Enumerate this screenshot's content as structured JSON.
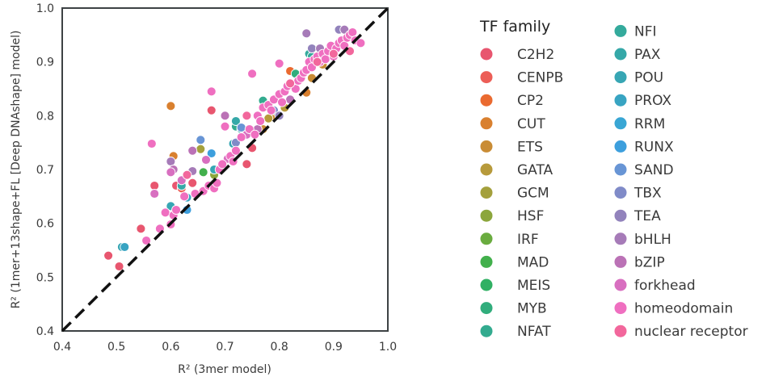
{
  "chart_data": {
    "type": "scatter",
    "xlabel": "R² (3mer model)",
    "ylabel": "R² (1mer+13shape+FL [Deep DNAshape] model)",
    "xlim": [
      0.4,
      1.0
    ],
    "ylim": [
      0.4,
      1.0
    ],
    "x_ticks": [
      "0.4",
      "0.5",
      "0.6",
      "0.7",
      "0.8",
      "0.9",
      "1.0"
    ],
    "y_ticks": [
      "0.4",
      "0.5",
      "0.6",
      "0.7",
      "0.8",
      "0.9",
      "1.0"
    ],
    "grid": false,
    "diagonal_reference": true,
    "legend": {
      "title": "TF family",
      "placement": "right, outside, two columns",
      "entries": [
        {
          "name": "C2H2",
          "color": "#e8566f"
        },
        {
          "name": "CENPB",
          "color": "#ec5e57"
        },
        {
          "name": "CP2",
          "color": "#ea6a30"
        },
        {
          "name": "CUT",
          "color": "#d9802f"
        },
        {
          "name": "ETS",
          "color": "#c98c35"
        },
        {
          "name": "GATA",
          "color": "#b79a3b"
        },
        {
          "name": "GCM",
          "color": "#a4a03c"
        },
        {
          "name": "HSF",
          "color": "#8ca63c"
        },
        {
          "name": "IRF",
          "color": "#6aac3f"
        },
        {
          "name": "MAD",
          "color": "#42b04c"
        },
        {
          "name": "MEIS",
          "color": "#30b063"
        },
        {
          "name": "MYB",
          "color": "#31ad7c"
        },
        {
          "name": "NFAT",
          "color": "#33ab8f"
        },
        {
          "name": "NFI",
          "color": "#34aa9c"
        },
        {
          "name": "PAX",
          "color": "#35a8a8"
        },
        {
          "name": "POU",
          "color": "#37a6b4"
        },
        {
          "name": "PROX",
          "color": "#38a4c2"
        },
        {
          "name": "RRM",
          "color": "#39a6d4"
        },
        {
          "name": "RUNX",
          "color": "#3d9fdd"
        },
        {
          "name": "SAND",
          "color": "#6895d5"
        },
        {
          "name": "TBX",
          "color": "#808bc8"
        },
        {
          "name": "TEA",
          "color": "#9283bc"
        },
        {
          "name": "bHLH",
          "color": "#a67bb8"
        },
        {
          "name": "bZIP",
          "color": "#bb72b6"
        },
        {
          "name": "forkhead",
          "color": "#d86fc0"
        },
        {
          "name": "homeodomain",
          "color": "#ef6fc0"
        },
        {
          "name": "nuclear receptor",
          "color": "#f2679c"
        }
      ]
    },
    "series": [
      {
        "name": "C2H2",
        "points": [
          [
            0.485,
            0.54
          ],
          [
            0.505,
            0.52
          ],
          [
            0.545,
            0.59
          ],
          [
            0.61,
            0.67
          ],
          [
            0.64,
            0.675
          ],
          [
            0.675,
            0.81
          ],
          [
            0.74,
            0.71
          ],
          [
            0.75,
            0.74
          ],
          [
            0.57,
            0.67
          ]
        ]
      },
      {
        "name": "CENPB",
        "points": [
          [
            0.62,
            0.665
          ]
        ]
      },
      {
        "name": "CP2",
        "points": [
          [
            0.82,
            0.883
          ]
        ]
      },
      {
        "name": "CUT",
        "points": [
          [
            0.6,
            0.818
          ],
          [
            0.605,
            0.725
          ],
          [
            0.85,
            0.843
          ]
        ]
      },
      {
        "name": "ETS",
        "points": [
          [
            0.77,
            0.775
          ],
          [
            0.79,
            0.8
          ],
          [
            0.86,
            0.87
          ],
          [
            0.88,
            0.895
          ]
        ]
      },
      {
        "name": "GATA",
        "points": [
          [
            0.78,
            0.795
          ],
          [
            0.81,
            0.815
          ]
        ]
      },
      {
        "name": "GCM",
        "points": [
          [
            0.655,
            0.738
          ]
        ]
      },
      {
        "name": "HSF",
        "points": [
          [
            0.68,
            0.69
          ]
        ]
      },
      {
        "name": "MAD",
        "points": [
          [
            0.66,
            0.695
          ]
        ]
      },
      {
        "name": "MYB",
        "points": [
          [
            0.83,
            0.878
          ]
        ]
      },
      {
        "name": "NFAT",
        "points": [
          [
            0.77,
            0.828
          ],
          [
            0.72,
            0.78
          ]
        ]
      },
      {
        "name": "NFI",
        "points": [
          [
            0.855,
            0.915
          ],
          [
            0.86,
            0.91
          ]
        ]
      },
      {
        "name": "PAX",
        "points": [
          [
            0.72,
            0.79
          ],
          [
            0.73,
            0.775
          ],
          [
            0.62,
            0.67
          ]
        ]
      },
      {
        "name": "POU",
        "points": [
          [
            0.6,
            0.632
          ],
          [
            0.51,
            0.556
          ],
          [
            0.68,
            0.7
          ],
          [
            0.715,
            0.748
          ]
        ]
      },
      {
        "name": "PROX",
        "points": [
          [
            0.515,
            0.556
          ],
          [
            0.63,
            0.648
          ]
        ]
      },
      {
        "name": "RUNX",
        "points": [
          [
            0.63,
            0.625
          ],
          [
            0.675,
            0.73
          ]
        ]
      },
      {
        "name": "SAND",
        "points": [
          [
            0.655,
            0.755
          ],
          [
            0.73,
            0.778
          ]
        ]
      },
      {
        "name": "TBX",
        "points": [
          [
            0.72,
            0.75
          ],
          [
            0.79,
            0.81
          ]
        ]
      },
      {
        "name": "TEA",
        "points": [
          [
            0.8,
            0.8
          ],
          [
            0.86,
            0.925
          ],
          [
            0.91,
            0.96
          ]
        ]
      },
      {
        "name": "bHLH",
        "points": [
          [
            0.6,
            0.715
          ],
          [
            0.85,
            0.953
          ],
          [
            0.875,
            0.925
          ],
          [
            0.9,
            0.92
          ],
          [
            0.92,
            0.96
          ],
          [
            0.64,
            0.697
          ],
          [
            0.755,
            0.765
          ]
        ]
      },
      {
        "name": "bZIP",
        "points": [
          [
            0.605,
            0.7
          ],
          [
            0.64,
            0.735
          ],
          [
            0.7,
            0.8
          ],
          [
            0.76,
            0.775
          ],
          [
            0.82,
            0.83
          ]
        ]
      },
      {
        "name": "forkhead",
        "points": [
          [
            0.57,
            0.655
          ],
          [
            0.6,
            0.695
          ],
          [
            0.62,
            0.68
          ],
          [
            0.665,
            0.718
          ],
          [
            0.705,
            0.72
          ],
          [
            0.74,
            0.765
          ]
        ]
      },
      {
        "name": "homeodomain",
        "points": [
          [
            0.565,
            0.748
          ],
          [
            0.59,
            0.62
          ],
          [
            0.6,
            0.598
          ],
          [
            0.605,
            0.615
          ],
          [
            0.61,
            0.625
          ],
          [
            0.625,
            0.65
          ],
          [
            0.645,
            0.655
          ],
          [
            0.66,
            0.66
          ],
          [
            0.67,
            0.67
          ],
          [
            0.68,
            0.665
          ],
          [
            0.685,
            0.675
          ],
          [
            0.69,
            0.7
          ],
          [
            0.695,
            0.71
          ],
          [
            0.71,
            0.725
          ],
          [
            0.715,
            0.715
          ],
          [
            0.72,
            0.735
          ],
          [
            0.73,
            0.76
          ],
          [
            0.745,
            0.775
          ],
          [
            0.755,
            0.765
          ],
          [
            0.76,
            0.8
          ],
          [
            0.765,
            0.79
          ],
          [
            0.77,
            0.815
          ],
          [
            0.78,
            0.82
          ],
          [
            0.785,
            0.81
          ],
          [
            0.79,
            0.83
          ],
          [
            0.8,
            0.84
          ],
          [
            0.805,
            0.825
          ],
          [
            0.81,
            0.845
          ],
          [
            0.815,
            0.855
          ],
          [
            0.82,
            0.86
          ],
          [
            0.83,
            0.85
          ],
          [
            0.835,
            0.865
          ],
          [
            0.84,
            0.87
          ],
          [
            0.845,
            0.88
          ],
          [
            0.85,
            0.885
          ],
          [
            0.855,
            0.9
          ],
          [
            0.86,
            0.89
          ],
          [
            0.865,
            0.905
          ],
          [
            0.87,
            0.91
          ],
          [
            0.875,
            0.9
          ],
          [
            0.88,
            0.915
          ],
          [
            0.885,
            0.905
          ],
          [
            0.89,
            0.92
          ],
          [
            0.895,
            0.93
          ],
          [
            0.9,
            0.91
          ],
          [
            0.905,
            0.925
          ],
          [
            0.91,
            0.935
          ],
          [
            0.915,
            0.94
          ],
          [
            0.92,
            0.93
          ],
          [
            0.925,
            0.945
          ],
          [
            0.93,
            0.95
          ],
          [
            0.935,
            0.955
          ],
          [
            0.94,
            0.94
          ],
          [
            0.95,
            0.935
          ],
          [
            0.675,
            0.845
          ],
          [
            0.75,
            0.878
          ],
          [
            0.8,
            0.897
          ],
          [
            0.58,
            0.59
          ],
          [
            0.555,
            0.568
          ],
          [
            0.7,
            0.78
          ]
        ]
      },
      {
        "name": "nuclear receptor",
        "points": [
          [
            0.63,
            0.69
          ],
          [
            0.74,
            0.8
          ],
          [
            0.82,
            0.86
          ],
          [
            0.87,
            0.9
          ],
          [
            0.9,
            0.915
          ],
          [
            0.93,
            0.92
          ]
        ]
      }
    ]
  }
}
